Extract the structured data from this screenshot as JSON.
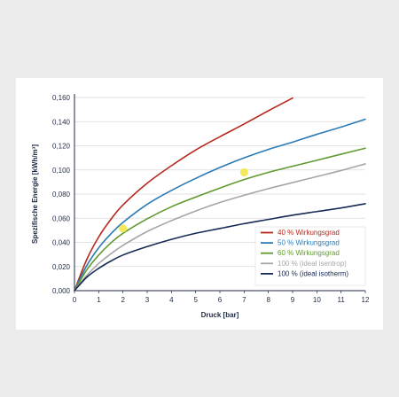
{
  "chart_data": {
    "type": "line",
    "xlabel": "Druck [bar]",
    "ylabel": "Spezifische Energie [kWh/m³]",
    "xlim": [
      0,
      12
    ],
    "ylim": [
      0,
      0.16
    ],
    "x_ticks": [
      "0",
      "1",
      "2",
      "3",
      "4",
      "5",
      "6",
      "7",
      "8",
      "9",
      "10",
      "11",
      "12"
    ],
    "y_ticks": [
      "0,000",
      "0,020",
      "0,040",
      "0,060",
      "0,080",
      "0,100",
      "0,120",
      "0,140",
      "0,160"
    ],
    "grid": "horizontal",
    "legend_position": "bottom-right",
    "series": [
      {
        "name_prefix": "40 %",
        "name_suffix": "Wirkungsgrad",
        "color": "#b5281c",
        "x": [
          0,
          0.5,
          1,
          1.5,
          2,
          3,
          4,
          5,
          6,
          7,
          8,
          9
        ],
        "y": [
          0,
          0.0255,
          0.0445,
          0.059,
          0.071,
          0.089,
          0.1035,
          0.1165,
          0.1275,
          0.138,
          0.149,
          0.1595
        ]
      },
      {
        "name_prefix": "50 %",
        "name_suffix": "Wirkungsgrad",
        "color": "#2b7ab5",
        "x": [
          0,
          0.5,
          1,
          1.5,
          2,
          3,
          4,
          5,
          6,
          7,
          8,
          9,
          10,
          11,
          12
        ],
        "y": [
          0,
          0.0205,
          0.0355,
          0.047,
          0.0565,
          0.0715,
          0.083,
          0.093,
          0.102,
          0.11,
          0.117,
          0.123,
          0.1295,
          0.1355,
          0.142
        ]
      },
      {
        "name_prefix": "60 %",
        "name_suffix": "Wirkungsgrad",
        "color": "#5f9a2e",
        "x": [
          0,
          0.5,
          1,
          1.5,
          2,
          3,
          4,
          5,
          6,
          7,
          8,
          9,
          10,
          11,
          12
        ],
        "y": [
          0,
          0.017,
          0.0295,
          0.0395,
          0.0475,
          0.0595,
          0.0695,
          0.0775,
          0.085,
          0.092,
          0.098,
          0.103,
          0.108,
          0.113,
          0.118
        ]
      },
      {
        "name_prefix": "100 %",
        "name_suffix": "(ideal isentrop)",
        "color": "#a6a6a8",
        "x": [
          0,
          0.5,
          1,
          1.5,
          2,
          3,
          4,
          5,
          6,
          7,
          8,
          9,
          10,
          11,
          12
        ],
        "y": [
          0,
          0.0125,
          0.0225,
          0.0305,
          0.0375,
          0.049,
          0.058,
          0.066,
          0.073,
          0.079,
          0.0845,
          0.0895,
          0.0945,
          0.0995,
          0.105
        ]
      },
      {
        "name_prefix": "100 %",
        "name_suffix": "(ideal isotherm)",
        "color": "#162a55",
        "x": [
          0,
          0.5,
          1,
          1.5,
          2,
          3,
          4,
          5,
          6,
          7,
          8,
          9,
          10,
          11,
          12
        ],
        "y": [
          0,
          0.011,
          0.0185,
          0.0245,
          0.0295,
          0.0365,
          0.0425,
          0.0475,
          0.0515,
          0.0555,
          0.059,
          0.0625,
          0.0655,
          0.0685,
          0.072
        ]
      }
    ],
    "highlights": [
      {
        "x": 2,
        "y": 0.0515,
        "color": "#f1e84a"
      },
      {
        "x": 7,
        "y": 0.098,
        "color": "#f1e84a"
      }
    ]
  }
}
